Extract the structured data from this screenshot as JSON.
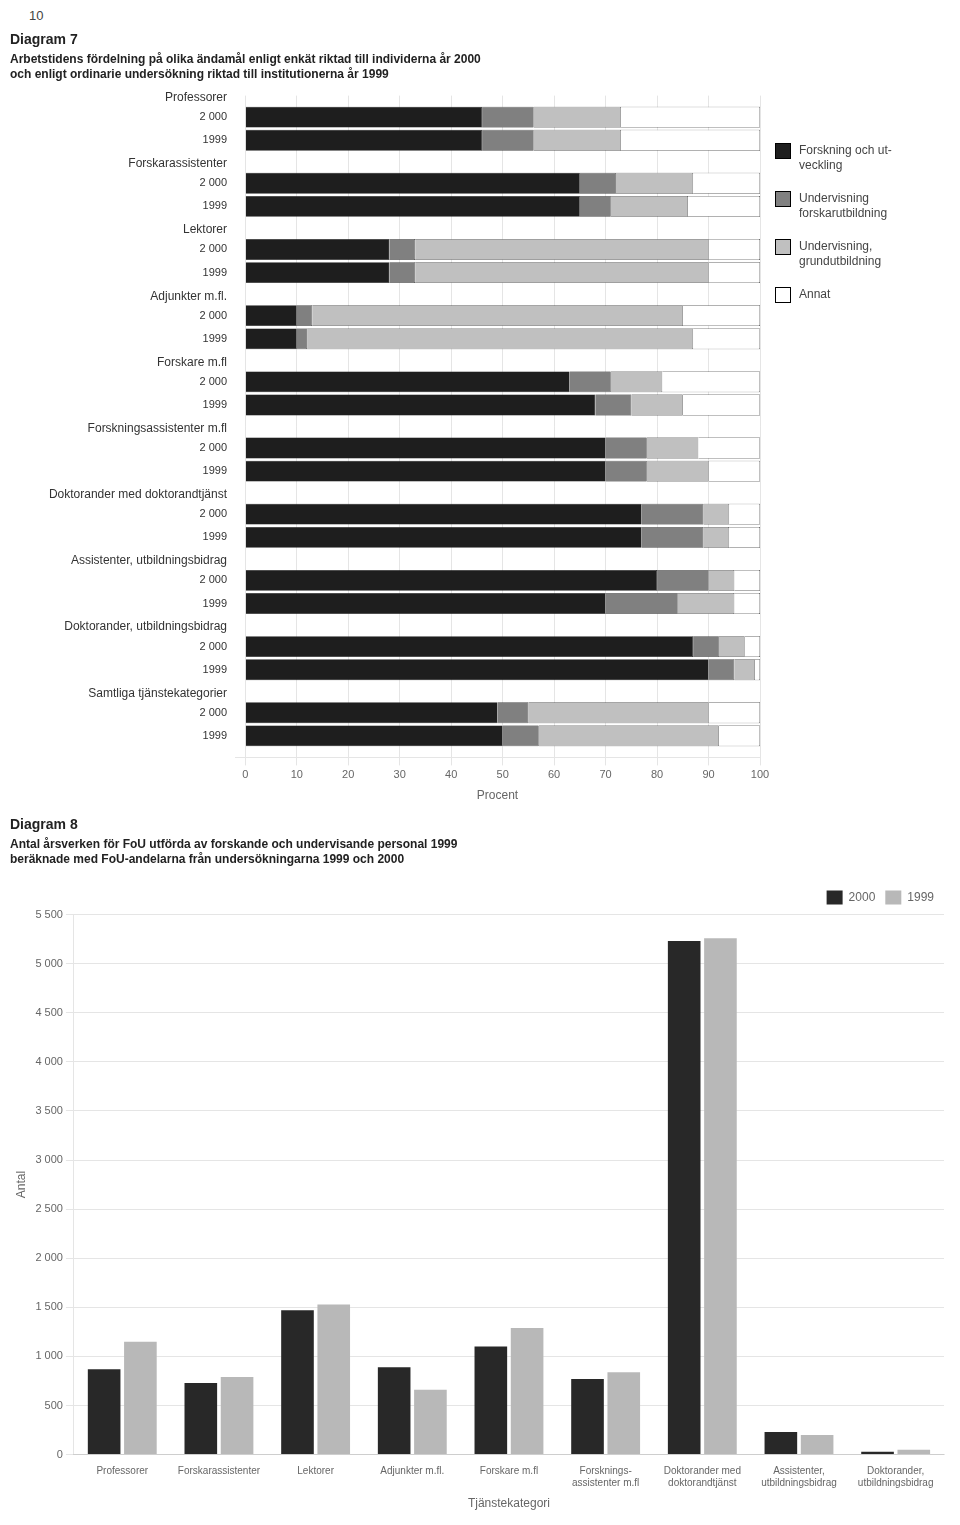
{
  "chart_data": [
    {
      "type": "bar",
      "orientation": "horizontal",
      "stacked": true,
      "annotations": [
        "10"
      ],
      "title": "Diagram 7",
      "subtitle": [
        "Arbetstidens fördelning på olika ändamål enligt enkät riktad till individerna år 2000",
        "och enligt ordinarie undersökning riktad till institutionerna år 1999"
      ],
      "categories": [
        "Professorer",
        "Forskarassistenter",
        "Lektorer",
        "Adjunkter m.fl.",
        "Forskare m.fl",
        "Forskningsassistenter m.fl",
        "Doktorander med doktorandtjänst",
        "Assistenter, utbildningsbidrag",
        "Doktorander, utbildningsbidrag",
        "Samtliga tjänstekategorier"
      ],
      "bar_labels": [
        "2 000",
        "1999"
      ],
      "series": [
        {
          "name": "Forskning och ut-\nveckling",
          "color": "#1e1e1e",
          "values": [
            [
              46,
              46
            ],
            [
              65,
              65
            ],
            [
              28,
              28
            ],
            [
              10,
              10
            ],
            [
              63,
              68
            ],
            [
              70,
              70
            ],
            [
              77,
              77
            ],
            [
              80,
              70
            ],
            [
              87,
              90
            ],
            [
              49,
              50
            ]
          ]
        },
        {
          "name": "Undervisning\nforskarutbildning",
          "color": "#808080",
          "values": [
            [
              10,
              10
            ],
            [
              7,
              6
            ],
            [
              5,
              5
            ],
            [
              3,
              2
            ],
            [
              8,
              7
            ],
            [
              8,
              8
            ],
            [
              12,
              12
            ],
            [
              10,
              14
            ],
            [
              5,
              5
            ],
            [
              6,
              7
            ]
          ]
        },
        {
          "name": "Undervisning,\ngrundutbildning",
          "color": "#c0c0c0",
          "values": [
            [
              17,
              17
            ],
            [
              15,
              15
            ],
            [
              57,
              57
            ],
            [
              72,
              75
            ],
            [
              10,
              10
            ],
            [
              10,
              12
            ],
            [
              5,
              5
            ],
            [
              5,
              11
            ],
            [
              5,
              4
            ],
            [
              35,
              35
            ]
          ]
        },
        {
          "name": "Annat",
          "color": "#ffffff",
          "values": [
            [
              27,
              27
            ],
            [
              13,
              14
            ],
            [
              10,
              10
            ],
            [
              15,
              13
            ],
            [
              19,
              15
            ],
            [
              12,
              10
            ],
            [
              6,
              6
            ],
            [
              5,
              5
            ],
            [
              3,
              1
            ],
            [
              10,
              8
            ]
          ]
        }
      ],
      "xlabel": "Procent",
      "xlim": [
        -2,
        100
      ],
      "xticks": [
        0,
        10,
        20,
        30,
        40,
        50,
        60,
        70,
        80,
        90,
        100
      ],
      "grid": "x",
      "legend": "right"
    },
    {
      "type": "bar",
      "title": "Diagram 8",
      "subtitle": [
        "Antal årsverken för FoU utförda av forskande och undervisande personal 1999",
        "beräknade med FoU-andelarna från undersökningarna 1999 och 2000"
      ],
      "categories": [
        "Professorer",
        "Forskarassistenter",
        "Lektorer",
        "Adjunkter m.fl.",
        "Forskare m.fl",
        "Forsknings-\nassistenter m.fl",
        "Doktorander med\ndoktorandtjänst",
        "Assistenter,\nutbildningsbidrag",
        "Doktorander,\nutbildningsbidrag"
      ],
      "series": [
        {
          "name": "2000",
          "color": "#282828",
          "values": [
            870,
            730,
            1470,
            890,
            1100,
            770,
            5230,
            230,
            30
          ]
        },
        {
          "name": "1999",
          "color": "#b8b8b8",
          "values": [
            1150,
            790,
            1530,
            660,
            1290,
            840,
            5260,
            200,
            50
          ]
        }
      ],
      "xlabel": "Tjänstekategori",
      "ylabel": "Antal",
      "ylim": [
        0,
        5500
      ],
      "yticks": [
        0,
        500,
        {
          "value": 1000,
          "label": "1 000"
        },
        {
          "value": 1500,
          "label": "1 500"
        },
        {
          "value": 2000,
          "label": "2 000"
        },
        {
          "value": 2500,
          "label": "2 500"
        },
        {
          "value": 3000,
          "label": "3 000"
        },
        {
          "value": 3500,
          "label": "3 500"
        },
        {
          "value": 4000,
          "label": "4 000"
        },
        {
          "value": 4500,
          "label": "4 500"
        },
        {
          "value": 5000,
          "label": "5 000"
        },
        {
          "value": 5500,
          "label": "5 500"
        }
      ],
      "grid": "y",
      "legend": "upper right"
    }
  ]
}
